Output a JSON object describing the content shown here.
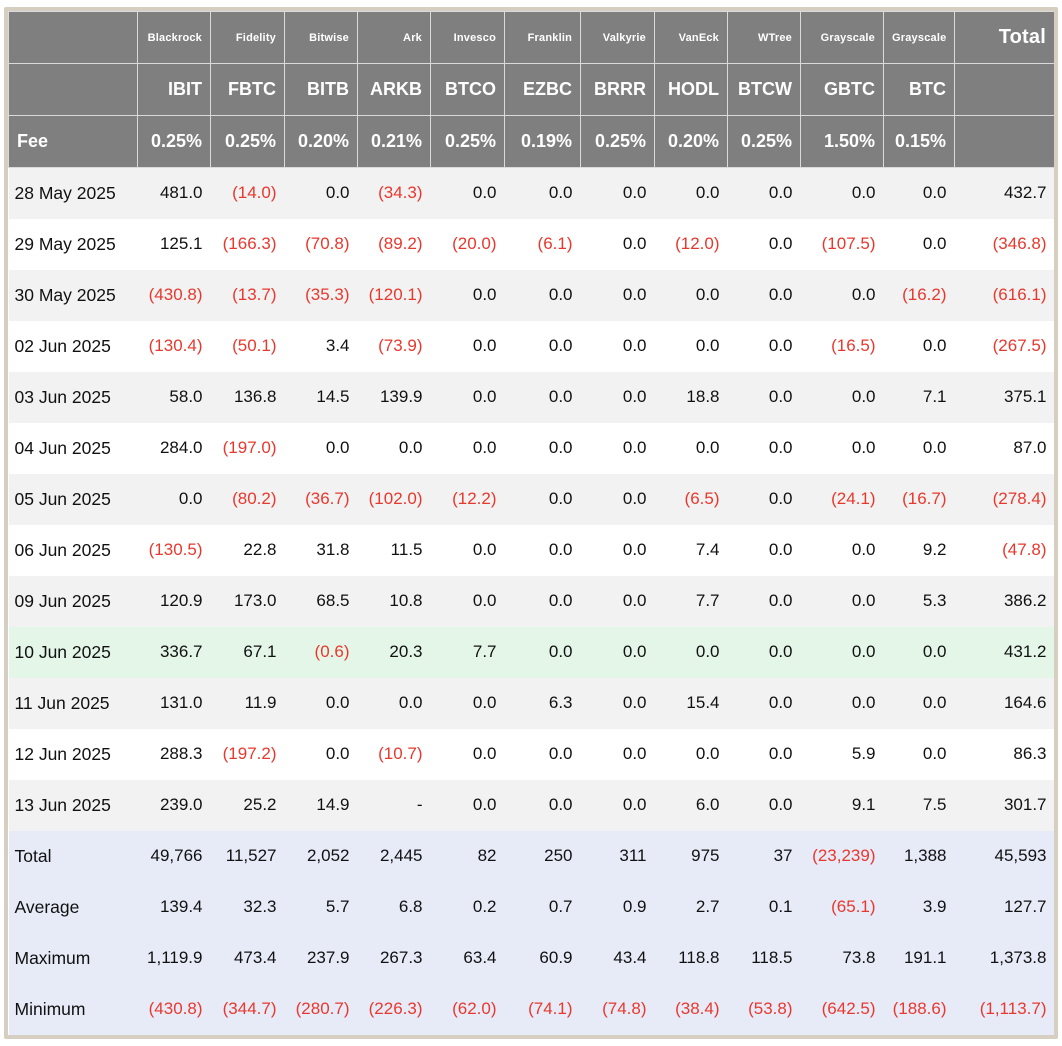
{
  "colors": {
    "header-gray": "#7f7f7f",
    "neg": "#e8382d",
    "stripe": "#f2f2f2",
    "green": "#e3f6e8",
    "blue": "#e7ebf8",
    "border-beige": "#d6cec0"
  },
  "chart_data": {
    "type": "table",
    "title": "Bitcoin ETF daily flows table",
    "providers": [
      "",
      "Blackrock",
      "Fidelity",
      "Bitwise",
      "Ark",
      "Invesco",
      "Franklin",
      "Valkyrie",
      "VanEck",
      "WTree",
      "Grayscale",
      "Grayscale",
      "Total"
    ],
    "tickers": [
      "",
      "IBIT",
      "FBTC",
      "BITB",
      "ARKB",
      "BTCO",
      "EZBC",
      "BRRR",
      "HODL",
      "BTCW",
      "GBTC",
      "BTC",
      ""
    ],
    "fees": [
      "Fee",
      "0.25%",
      "0.25%",
      "0.20%",
      "0.21%",
      "0.25%",
      "0.19%",
      "0.25%",
      "0.20%",
      "0.25%",
      "1.50%",
      "0.15%",
      ""
    ],
    "rows": [
      {
        "label": "28 May 2025",
        "values": [
          "481.0",
          "(14.0)",
          "0.0",
          "(34.3)",
          "0.0",
          "0.0",
          "0.0",
          "0.0",
          "0.0",
          "0.0",
          "0.0",
          "432.7"
        ]
      },
      {
        "label": "29 May 2025",
        "values": [
          "125.1",
          "(166.3)",
          "(70.8)",
          "(89.2)",
          "(20.0)",
          "(6.1)",
          "0.0",
          "(12.0)",
          "0.0",
          "(107.5)",
          "0.0",
          "(346.8)"
        ]
      },
      {
        "label": "30 May 2025",
        "values": [
          "(430.8)",
          "(13.7)",
          "(35.3)",
          "(120.1)",
          "0.0",
          "0.0",
          "0.0",
          "0.0",
          "0.0",
          "0.0",
          "(16.2)",
          "(616.1)"
        ]
      },
      {
        "label": "02 Jun 2025",
        "values": [
          "(130.4)",
          "(50.1)",
          "3.4",
          "(73.9)",
          "0.0",
          "0.0",
          "0.0",
          "0.0",
          "0.0",
          "(16.5)",
          "0.0",
          "(267.5)"
        ]
      },
      {
        "label": "03 Jun 2025",
        "values": [
          "58.0",
          "136.8",
          "14.5",
          "139.9",
          "0.0",
          "0.0",
          "0.0",
          "18.8",
          "0.0",
          "0.0",
          "7.1",
          "375.1"
        ]
      },
      {
        "label": "04 Jun 2025",
        "values": [
          "284.0",
          "(197.0)",
          "0.0",
          "0.0",
          "0.0",
          "0.0",
          "0.0",
          "0.0",
          "0.0",
          "0.0",
          "0.0",
          "87.0"
        ]
      },
      {
        "label": "05 Jun 2025",
        "values": [
          "0.0",
          "(80.2)",
          "(36.7)",
          "(102.0)",
          "(12.2)",
          "0.0",
          "0.0",
          "(6.5)",
          "0.0",
          "(24.1)",
          "(16.7)",
          "(278.4)"
        ]
      },
      {
        "label": "06 Jun 2025",
        "values": [
          "(130.5)",
          "22.8",
          "31.8",
          "11.5",
          "0.0",
          "0.0",
          "0.0",
          "7.4",
          "0.0",
          "0.0",
          "9.2",
          "(47.8)"
        ]
      },
      {
        "label": "09 Jun 2025",
        "values": [
          "120.9",
          "173.0",
          "68.5",
          "10.8",
          "0.0",
          "0.0",
          "0.0",
          "7.7",
          "0.0",
          "0.0",
          "5.3",
          "386.2"
        ]
      },
      {
        "label": "10 Jun 2025",
        "highlighted": true,
        "values": [
          "336.7",
          "67.1",
          "(0.6)",
          "20.3",
          "7.7",
          "0.0",
          "0.0",
          "0.0",
          "0.0",
          "0.0",
          "0.0",
          "431.2"
        ]
      },
      {
        "label": "11 Jun 2025",
        "values": [
          "131.0",
          "11.9",
          "0.0",
          "0.0",
          "0.0",
          "6.3",
          "0.0",
          "15.4",
          "0.0",
          "0.0",
          "0.0",
          "164.6"
        ]
      },
      {
        "label": "12 Jun 2025",
        "values": [
          "288.3",
          "(197.2)",
          "0.0",
          "(10.7)",
          "0.0",
          "0.0",
          "0.0",
          "0.0",
          "0.0",
          "5.9",
          "0.0",
          "86.3"
        ]
      },
      {
        "label": "13 Jun 2025",
        "values": [
          "239.0",
          "25.2",
          "14.9",
          "-",
          "0.0",
          "0.0",
          "0.0",
          "6.0",
          "0.0",
          "9.1",
          "7.5",
          "301.7"
        ]
      }
    ],
    "summary_rows": [
      {
        "label": "Total",
        "values": [
          "49,766",
          "11,527",
          "2,052",
          "2,445",
          "82",
          "250",
          "311",
          "975",
          "37",
          "(23,239)",
          "1,388",
          "45,593"
        ]
      },
      {
        "label": "Average",
        "values": [
          "139.4",
          "32.3",
          "5.7",
          "6.8",
          "0.2",
          "0.7",
          "0.9",
          "2.7",
          "0.1",
          "(65.1)",
          "3.9",
          "127.7"
        ]
      },
      {
        "label": "Maximum",
        "values": [
          "1,119.9",
          "473.4",
          "237.9",
          "267.3",
          "63.4",
          "60.9",
          "43.4",
          "118.8",
          "118.5",
          "73.8",
          "191.1",
          "1,373.8"
        ]
      },
      {
        "label": "Minimum",
        "values": [
          "(430.8)",
          "(344.7)",
          "(280.7)",
          "(226.3)",
          "(62.0)",
          "(74.1)",
          "(74.8)",
          "(38.4)",
          "(53.8)",
          "(642.5)",
          "(188.6)",
          "(1,113.7)"
        ]
      }
    ]
  }
}
